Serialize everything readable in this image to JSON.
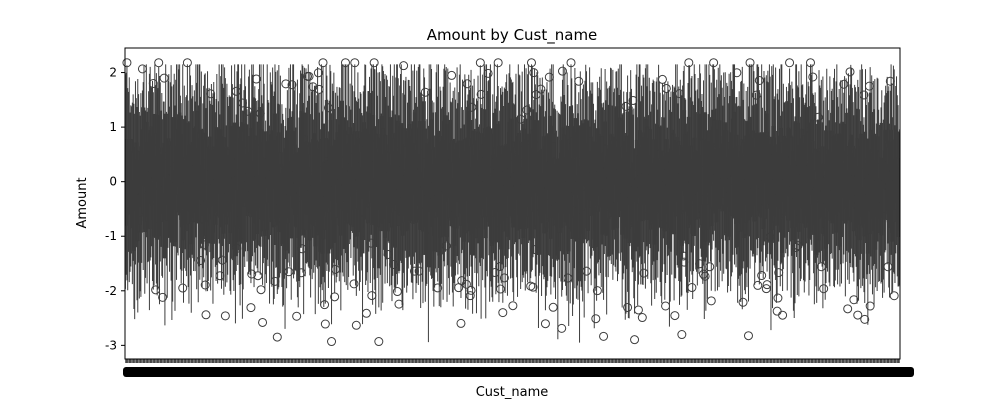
{
  "chart_data": {
    "type": "box",
    "title": "Amount by Cust_name",
    "xlabel": "Cust_name",
    "ylabel": "Amount",
    "ylim": [
      -3.25,
      2.45
    ],
    "yticks": [
      -3,
      -2,
      -1,
      0,
      1,
      2
    ],
    "category_count": 1000,
    "category_tick_labels_legible": false,
    "grid": false,
    "legend": "none",
    "colors": {
      "box_stroke": "#3d3d3d",
      "axes": "#000000",
      "outlier_stroke": "#3d3d3d"
    },
    "value_summary": {
      "median_typical": 0.0,
      "q1_typical": -0.6,
      "q3_typical": 0.6,
      "whisker_low_typical": -1.8,
      "whisker_high_typical": 1.8,
      "outlier_range": [
        -2.93,
        2.18
      ]
    }
  }
}
